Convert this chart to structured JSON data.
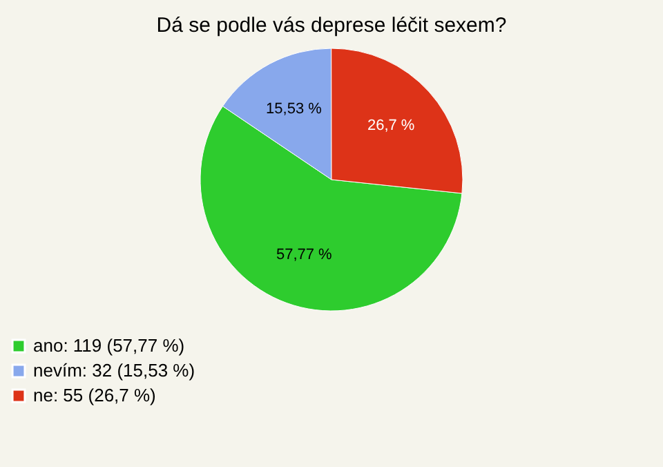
{
  "chart_data": {
    "type": "pie",
    "title": "Dá se podle vás deprese léčit sexem?",
    "categories": [
      "ano: 119 (57,77 %)",
      "nevím: 32 (15,53 %)",
      "ne: 55 (26,7 %)"
    ],
    "values": [
      57.77,
      15.53,
      26.7
    ],
    "colors": [
      "#2ecc2e",
      "#88a8ec",
      "#dd3318"
    ],
    "value_labels": [
      "57,77 %",
      "15,53 %",
      "26,7 %"
    ],
    "legend": "bottom left"
  }
}
